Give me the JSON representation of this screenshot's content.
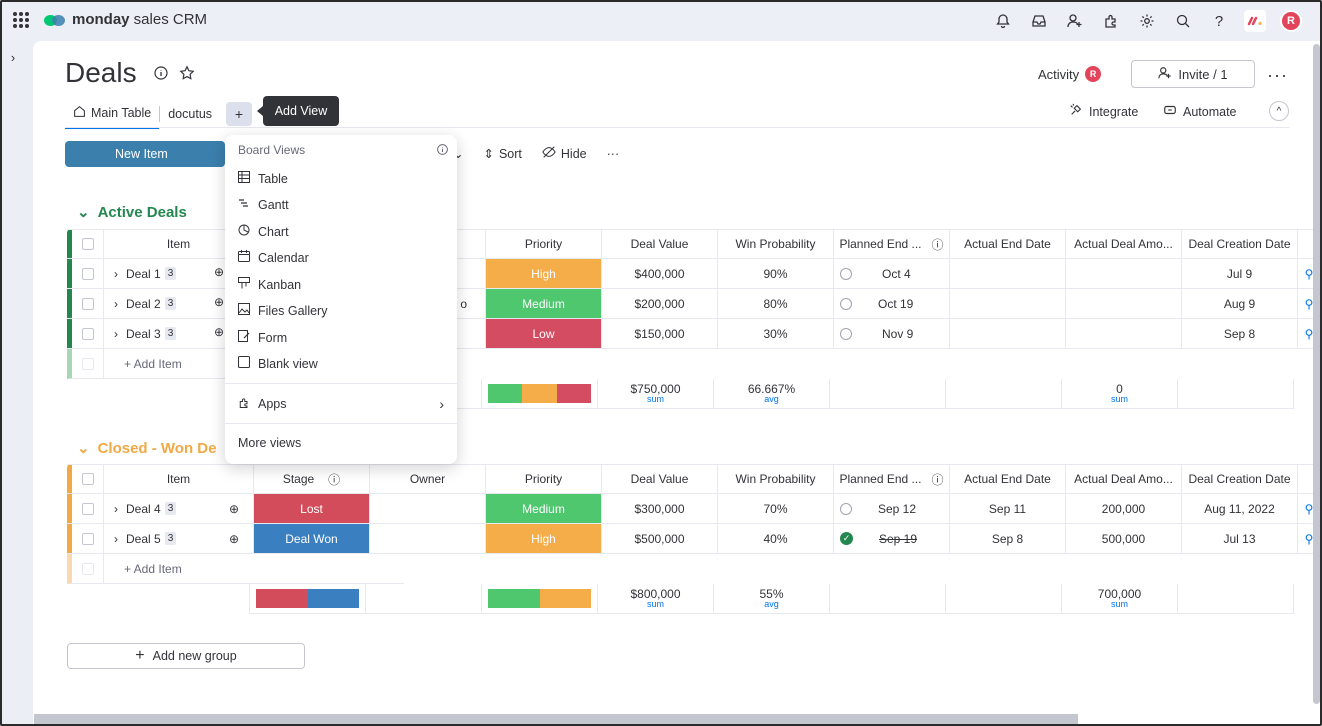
{
  "app": {
    "name_bold": "monday",
    "name_rest": " sales CRM"
  },
  "colors": {
    "accent": "#0073ea",
    "active_group": "#258750",
    "closed_group": "#f0a944",
    "high": "#f4ad49",
    "medium": "#4fc76f",
    "low": "#d44c61",
    "lost": "#d24c5c",
    "won": "#3a7fc0"
  },
  "header": {
    "title": "Deals",
    "activity_label": "Activity",
    "avatar_letter": "R",
    "invite_label": "Invite / 1"
  },
  "tabs": {
    "main": "Main Table",
    "second": "docutus",
    "add": "+"
  },
  "tooltip": "Add View",
  "right_actions": {
    "integrate": "Integrate",
    "automate": "Automate"
  },
  "toolbar": {
    "new_item": "New Item",
    "sort": "Sort",
    "hide": "Hide"
  },
  "dropdown": {
    "header": "Board Views",
    "items": [
      {
        "label": "Table",
        "icon": "table-icon"
      },
      {
        "label": "Gantt",
        "icon": "gantt-icon"
      },
      {
        "label": "Chart",
        "icon": "chart-icon"
      },
      {
        "label": "Calendar",
        "icon": "calendar-icon"
      },
      {
        "label": "Kanban",
        "icon": "kanban-icon"
      },
      {
        "label": "Files Gallery",
        "icon": "gallery-icon"
      },
      {
        "label": "Form",
        "icon": "form-icon"
      },
      {
        "label": "Blank view",
        "icon": "blank-icon"
      }
    ],
    "apps": "Apps",
    "more": "More views"
  },
  "columns": {
    "item": "Item",
    "stage": "Stage",
    "owner": "Owner",
    "priority": "Priority",
    "deal_value": "Deal Value",
    "win_prob": "Win Probability",
    "planned_end": "Planned End ...",
    "actual_end": "Actual End Date",
    "actual_amount": "Actual Deal Amo...",
    "creation": "Deal Creation Date"
  },
  "groups": {
    "active": {
      "title": "Active Deals",
      "rows": [
        {
          "name": "Deal 1",
          "count": "3",
          "priority": "High",
          "value": "$400,000",
          "prob": "90%",
          "planned": "Oct 4",
          "creation": "Jul 9"
        },
        {
          "name": "Deal 2",
          "count": "3",
          "priority": "Medium",
          "value": "$200,000",
          "prob": "80%",
          "planned": "Oct 19",
          "creation": "Aug 9",
          "owner_partial": "o"
        },
        {
          "name": "Deal 3",
          "count": "3",
          "priority": "Low",
          "value": "$150,000",
          "prob": "30%",
          "planned": "Nov 9",
          "creation": "Sep 8"
        }
      ],
      "add_item": "+ Add Item",
      "summary": {
        "value": "$750,000",
        "value_lbl": "sum",
        "prob": "66.667%",
        "prob_lbl": "avg",
        "amount": "0",
        "amount_lbl": "sum"
      }
    },
    "closed": {
      "title": "Closed - Won De",
      "rows": [
        {
          "name": "Deal 4",
          "count": "3",
          "stage": "Lost",
          "priority": "Medium",
          "value": "$300,000",
          "prob": "70%",
          "planned": "Sep 12",
          "actual_end": "Sep 11",
          "amount": "200,000",
          "creation": "Aug 11, 2022"
        },
        {
          "name": "Deal 5",
          "count": "3",
          "stage": "Deal Won",
          "priority": "High",
          "value": "$500,000",
          "prob": "40%",
          "planned": "Sep 19",
          "actual_end": "Sep 8",
          "amount": "500,000",
          "creation": "Jul 13"
        }
      ],
      "add_item": "+ Add Item",
      "summary": {
        "value": "$800,000",
        "value_lbl": "sum",
        "prob": "55%",
        "prob_lbl": "avg",
        "amount": "700,000",
        "amount_lbl": "sum"
      }
    }
  },
  "add_group": "Add new group"
}
